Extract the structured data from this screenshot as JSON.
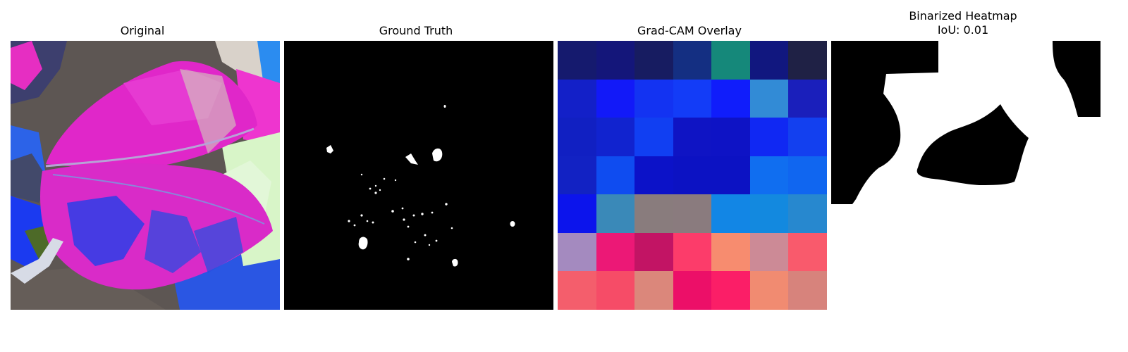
{
  "panels": {
    "original": {
      "title": "Original"
    },
    "ground_truth": {
      "title": "Ground Truth"
    },
    "gradcam": {
      "title": "Grad-CAM Overlay",
      "cells": [
        [
          "#151a6e",
          "#14167a",
          "#171c61",
          "#142f82",
          "#15887a",
          "#11177f",
          "#1f2145"
        ],
        [
          "#1320c8",
          "#1219f8",
          "#1333f2",
          "#133cf7",
          "#101dfb",
          "#328bd6",
          "#1a1fbb"
        ],
        [
          "#1120c2",
          "#1123cf",
          "#113ff2",
          "#0f14c4",
          "#0e13c5",
          "#1028f3",
          "#1340ef"
        ],
        [
          "#1222c3",
          "#0f4cf0",
          "#0c12c8",
          "#0c12c3",
          "#0c12c3",
          "#106ef0",
          "#1066f0"
        ],
        [
          "#0c14ec",
          "#3a89b8",
          "#897c7d",
          "#8a7b7e",
          "#1286e5",
          "#1389df",
          "#2788cf"
        ],
        [
          "#a48abf",
          "#ec1876",
          "#c21464",
          "#fc3c6a",
          "#f78c6f",
          "#cc8a96",
          "#f95a6c"
        ],
        [
          "#f45e6c",
          "#f64c67",
          "#db877b",
          "#ec0f68",
          "#fb1e67",
          "#f18b71",
          "#d7837c"
        ]
      ]
    },
    "binarized": {
      "title": "Binarized Heatmap\nIoU: 0.01"
    }
  }
}
